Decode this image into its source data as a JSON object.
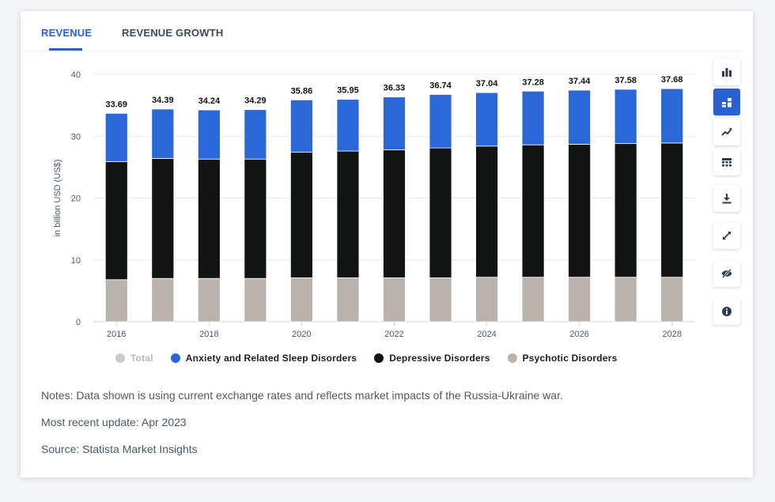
{
  "tabs": [
    {
      "label": "REVENUE",
      "active": true
    },
    {
      "label": "REVENUE GROWTH",
      "active": false
    }
  ],
  "colors": {
    "accent": "#2a60d6",
    "anxiety": "#2a68d8",
    "depressive": "#121414",
    "psychotic": "#b9b3ab",
    "total_legend": "#cdcac6"
  },
  "toolbar": [
    {
      "icon": "bar-chart-icon",
      "active": false
    },
    {
      "icon": "stacked-bar-icon",
      "active": true
    },
    {
      "icon": "trend-line-icon",
      "active": false
    },
    {
      "icon": "table-view-icon",
      "active": false
    },
    {
      "icon": "download-icon",
      "active": false
    },
    {
      "icon": "expand-icon",
      "active": false
    },
    {
      "icon": "hide-eye-icon",
      "active": false
    },
    {
      "icon": "info-icon",
      "active": false
    }
  ],
  "chart_data": {
    "type": "bar",
    "stacked": true,
    "ylabel": "in billion USD (US$)",
    "ylim": [
      0,
      40
    ],
    "yticks": [
      0,
      10,
      20,
      30,
      40
    ],
    "categories": [
      "2016",
      "2017",
      "2018",
      "2019",
      "2020",
      "2021",
      "2022",
      "2023",
      "2024",
      "2025",
      "2026",
      "2027",
      "2028"
    ],
    "x_tick_labels": [
      "2016",
      "2018",
      "2020",
      "2022",
      "2024",
      "2026",
      "2028"
    ],
    "totals": [
      33.69,
      34.39,
      34.24,
      34.29,
      35.86,
      35.95,
      36.33,
      36.74,
      37.04,
      37.28,
      37.44,
      37.58,
      37.68
    ],
    "total_labels": [
      "33.69",
      "34.39",
      "34.24",
      "34.29",
      "35.86",
      "35.95",
      "36.33",
      "36.74",
      "37.04",
      "37.28",
      "37.44",
      "37.58",
      "37.68"
    ],
    "series": [
      {
        "name": "Psychotic Disorders",
        "values": [
          6.8,
          7.0,
          7.0,
          7.0,
          7.1,
          7.1,
          7.1,
          7.1,
          7.2,
          7.2,
          7.2,
          7.2,
          7.2
        ]
      },
      {
        "name": "Depressive Disorders",
        "values": [
          19.1,
          19.4,
          19.3,
          19.3,
          20.3,
          20.5,
          20.7,
          21.0,
          21.2,
          21.4,
          21.5,
          21.6,
          21.7
        ]
      },
      {
        "name": "Anxiety and Related Sleep Disorders",
        "values": [
          7.79,
          7.99,
          7.94,
          7.99,
          8.46,
          8.35,
          8.53,
          8.64,
          8.64,
          8.68,
          8.74,
          8.78,
          8.78
        ]
      }
    ],
    "legend": [
      {
        "name": "Total",
        "muted": true
      },
      {
        "name": "Anxiety and Related Sleep Disorders",
        "muted": false
      },
      {
        "name": "Depressive Disorders",
        "muted": false
      },
      {
        "name": "Psychotic Disorders",
        "muted": false
      }
    ],
    "legend_position": "bottom",
    "grid": true
  },
  "notes": {
    "note": "Notes: Data shown is using current exchange rates and reflects market impacts of the Russia-Ukraine war.",
    "update": "Most recent update: Apr 2023",
    "source": "Source: Statista Market Insights"
  }
}
